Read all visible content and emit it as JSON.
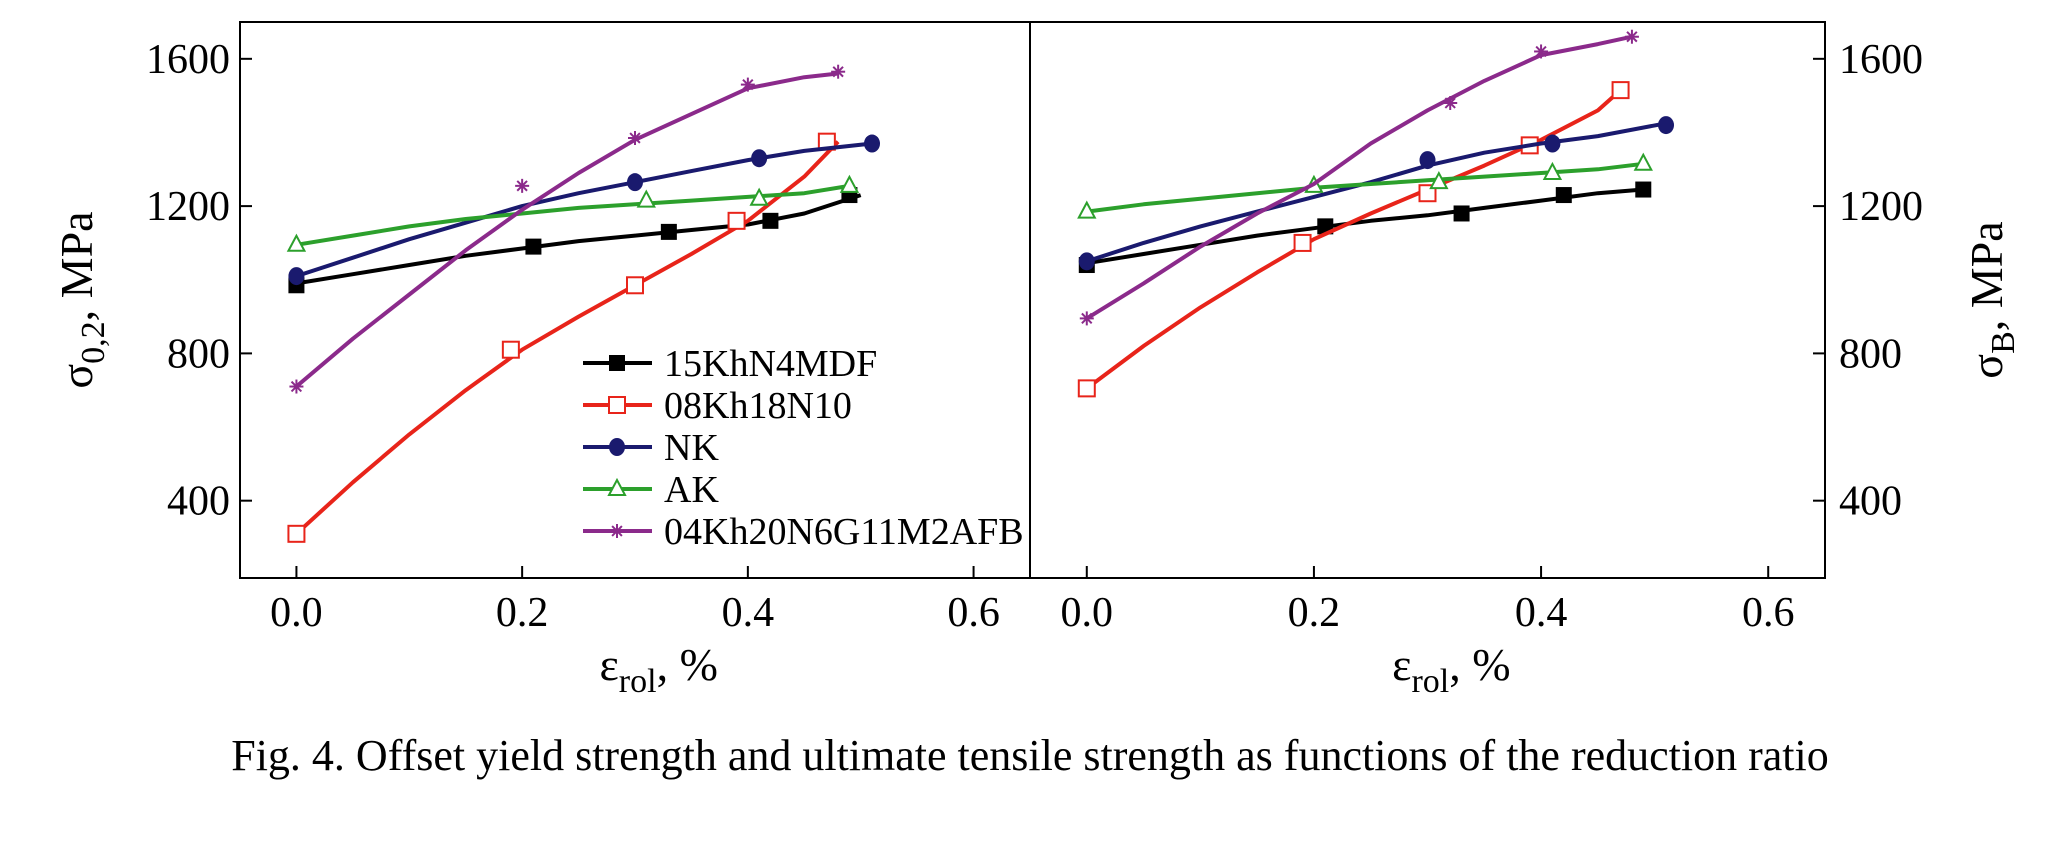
{
  "caption": "Fig. 4. Offset yield strength and ultimate tensile strength as functions of the reduction ratio",
  "colors": {
    "15KhN4MDF": "#000000",
    "08Kh18N10": "#e8241a",
    "NK": "#1a1a6e",
    "AK": "#2ca02c",
    "04Kh20N6G11M2AFB": "#8b2a8b"
  },
  "chart_data": [
    {
      "type": "line",
      "panel": "left",
      "xlabel": {
        "main": "ε",
        "sub": "rol",
        "suffix": ", %"
      },
      "ylabel": {
        "main": "σ",
        "sub": "0,2",
        "suffix": ", MPa"
      },
      "y_axis_side": "left",
      "xlim": [
        -0.05,
        0.65
      ],
      "ylim": [
        190,
        1700
      ],
      "xticks": [
        0.0,
        0.2,
        0.4,
        0.6
      ],
      "xtick_labels": [
        "0.0",
        "0.2",
        "0.4",
        "0.6"
      ],
      "yticks": [
        400,
        800,
        1200,
        1600
      ],
      "ytick_labels": [
        "400",
        "800",
        "1200",
        "1600"
      ],
      "legend_placement": "center",
      "series": [
        {
          "name": "15KhN4MDF",
          "marker": "filled-square",
          "line": [
            [
              0.0,
              990
            ],
            [
              0.05,
              1015
            ],
            [
              0.1,
              1040
            ],
            [
              0.15,
              1065
            ],
            [
              0.2,
              1085
            ],
            [
              0.25,
              1105
            ],
            [
              0.3,
              1120
            ],
            [
              0.35,
              1135
            ],
            [
              0.4,
              1150
            ],
            [
              0.45,
              1180
            ],
            [
              0.5,
              1230
            ]
          ],
          "markers": [
            [
              0.0,
              985
            ],
            [
              0.21,
              1090
            ],
            [
              0.33,
              1130
            ],
            [
              0.42,
              1160
            ],
            [
              0.49,
              1230
            ]
          ]
        },
        {
          "name": "08Kh18N10",
          "marker": "open-square",
          "line": [
            [
              0.0,
              310
            ],
            [
              0.05,
              450
            ],
            [
              0.1,
              580
            ],
            [
              0.15,
              700
            ],
            [
              0.2,
              810
            ],
            [
              0.25,
              900
            ],
            [
              0.3,
              985
            ],
            [
              0.35,
              1070
            ],
            [
              0.4,
              1160
            ],
            [
              0.45,
              1280
            ],
            [
              0.48,
              1375
            ]
          ],
          "markers": [
            [
              0.0,
              310
            ],
            [
              0.19,
              810
            ],
            [
              0.3,
              985
            ],
            [
              0.39,
              1160
            ],
            [
              0.47,
              1375
            ]
          ]
        },
        {
          "name": "NK",
          "marker": "filled-circle",
          "line": [
            [
              0.0,
              1010
            ],
            [
              0.05,
              1060
            ],
            [
              0.1,
              1110
            ],
            [
              0.15,
              1155
            ],
            [
              0.2,
              1200
            ],
            [
              0.25,
              1235
            ],
            [
              0.3,
              1265
            ],
            [
              0.35,
              1295
            ],
            [
              0.4,
              1325
            ],
            [
              0.45,
              1350
            ],
            [
              0.51,
              1370
            ]
          ],
          "markers": [
            [
              0.0,
              1010
            ],
            [
              0.3,
              1265
            ],
            [
              0.41,
              1330
            ],
            [
              0.51,
              1370
            ]
          ]
        },
        {
          "name": "AK",
          "marker": "open-triangle",
          "line": [
            [
              0.0,
              1095
            ],
            [
              0.05,
              1120
            ],
            [
              0.1,
              1145
            ],
            [
              0.15,
              1165
            ],
            [
              0.2,
              1180
            ],
            [
              0.25,
              1195
            ],
            [
              0.3,
              1205
            ],
            [
              0.35,
              1215
            ],
            [
              0.4,
              1225
            ],
            [
              0.45,
              1235
            ],
            [
              0.49,
              1255
            ]
          ],
          "markers": [
            [
              0.0,
              1095
            ],
            [
              0.31,
              1215
            ],
            [
              0.41,
              1220
            ],
            [
              0.49,
              1255
            ]
          ]
        },
        {
          "name": "04Kh20N6G11M2AFB",
          "marker": "star",
          "line": [
            [
              0.0,
              710
            ],
            [
              0.05,
              840
            ],
            [
              0.1,
              960
            ],
            [
              0.15,
              1080
            ],
            [
              0.2,
              1190
            ],
            [
              0.25,
              1290
            ],
            [
              0.3,
              1380
            ],
            [
              0.35,
              1450
            ],
            [
              0.4,
              1520
            ],
            [
              0.45,
              1550
            ],
            [
              0.48,
              1560
            ]
          ],
          "markers": [
            [
              0.0,
              710
            ],
            [
              0.2,
              1255
            ],
            [
              0.3,
              1385
            ],
            [
              0.4,
              1530
            ],
            [
              0.48,
              1565
            ]
          ]
        }
      ]
    },
    {
      "type": "line",
      "panel": "right",
      "xlabel": {
        "main": "ε",
        "sub": "rol",
        "suffix": ", %"
      },
      "ylabel": {
        "main": "σ",
        "sub": "B",
        "suffix": ", MPa"
      },
      "y_axis_side": "right",
      "xlim": [
        -0.05,
        0.65
      ],
      "ylim": [
        190,
        1700
      ],
      "xticks": [
        0.0,
        0.2,
        0.4,
        0.6
      ],
      "xtick_labels": [
        "0.0",
        "0.2",
        "0.4",
        "0.6"
      ],
      "yticks": [
        400,
        800,
        1200,
        1600
      ],
      "ytick_labels": [
        "400",
        "800",
        "1200",
        "1600"
      ],
      "series": [
        {
          "name": "15KhN4MDF",
          "marker": "filled-square",
          "line": [
            [
              0.0,
              1045
            ],
            [
              0.05,
              1070
            ],
            [
              0.1,
              1095
            ],
            [
              0.15,
              1120
            ],
            [
              0.2,
              1140
            ],
            [
              0.25,
              1160
            ],
            [
              0.3,
              1175
            ],
            [
              0.35,
              1195
            ],
            [
              0.4,
              1215
            ],
            [
              0.45,
              1235
            ],
            [
              0.49,
              1245
            ]
          ],
          "markers": [
            [
              0.0,
              1040
            ],
            [
              0.21,
              1145
            ],
            [
              0.33,
              1180
            ],
            [
              0.42,
              1230
            ],
            [
              0.49,
              1245
            ]
          ]
        },
        {
          "name": "08Kh18N10",
          "marker": "open-square",
          "line": [
            [
              0.0,
              705
            ],
            [
              0.05,
              820
            ],
            [
              0.1,
              925
            ],
            [
              0.15,
              1020
            ],
            [
              0.2,
              1110
            ],
            [
              0.25,
              1180
            ],
            [
              0.3,
              1245
            ],
            [
              0.35,
              1310
            ],
            [
              0.4,
              1380
            ],
            [
              0.45,
              1460
            ],
            [
              0.47,
              1515
            ]
          ],
          "markers": [
            [
              0.0,
              705
            ],
            [
              0.19,
              1100
            ],
            [
              0.3,
              1235
            ],
            [
              0.39,
              1365
            ],
            [
              0.47,
              1515
            ]
          ]
        },
        {
          "name": "NK",
          "marker": "filled-circle",
          "line": [
            [
              0.0,
              1050
            ],
            [
              0.05,
              1100
            ],
            [
              0.1,
              1145
            ],
            [
              0.15,
              1185
            ],
            [
              0.2,
              1225
            ],
            [
              0.25,
              1265
            ],
            [
              0.3,
              1310
            ],
            [
              0.35,
              1345
            ],
            [
              0.4,
              1370
            ],
            [
              0.45,
              1390
            ],
            [
              0.51,
              1425
            ]
          ],
          "markers": [
            [
              0.0,
              1050
            ],
            [
              0.3,
              1325
            ],
            [
              0.41,
              1370
            ],
            [
              0.51,
              1420
            ]
          ]
        },
        {
          "name": "AK",
          "marker": "open-triangle",
          "line": [
            [
              0.0,
              1185
            ],
            [
              0.05,
              1205
            ],
            [
              0.1,
              1220
            ],
            [
              0.15,
              1235
            ],
            [
              0.2,
              1250
            ],
            [
              0.25,
              1260
            ],
            [
              0.3,
              1270
            ],
            [
              0.35,
              1280
            ],
            [
              0.4,
              1290
            ],
            [
              0.45,
              1300
            ],
            [
              0.49,
              1315
            ]
          ],
          "markers": [
            [
              0.0,
              1185
            ],
            [
              0.2,
              1255
            ],
            [
              0.31,
              1265
            ],
            [
              0.41,
              1290
            ],
            [
              0.49,
              1315
            ]
          ]
        },
        {
          "name": "04Kh20N6G11M2AFB",
          "marker": "star",
          "line": [
            [
              0.0,
              895
            ],
            [
              0.05,
              990
            ],
            [
              0.1,
              1090
            ],
            [
              0.15,
              1180
            ],
            [
              0.2,
              1260
            ],
            [
              0.25,
              1370
            ],
            [
              0.3,
              1460
            ],
            [
              0.35,
              1540
            ],
            [
              0.4,
              1610
            ],
            [
              0.45,
              1640
            ],
            [
              0.48,
              1660
            ]
          ],
          "markers": [
            [
              0.0,
              895
            ],
            [
              0.32,
              1480
            ],
            [
              0.4,
              1620
            ],
            [
              0.48,
              1660
            ]
          ]
        }
      ]
    }
  ]
}
